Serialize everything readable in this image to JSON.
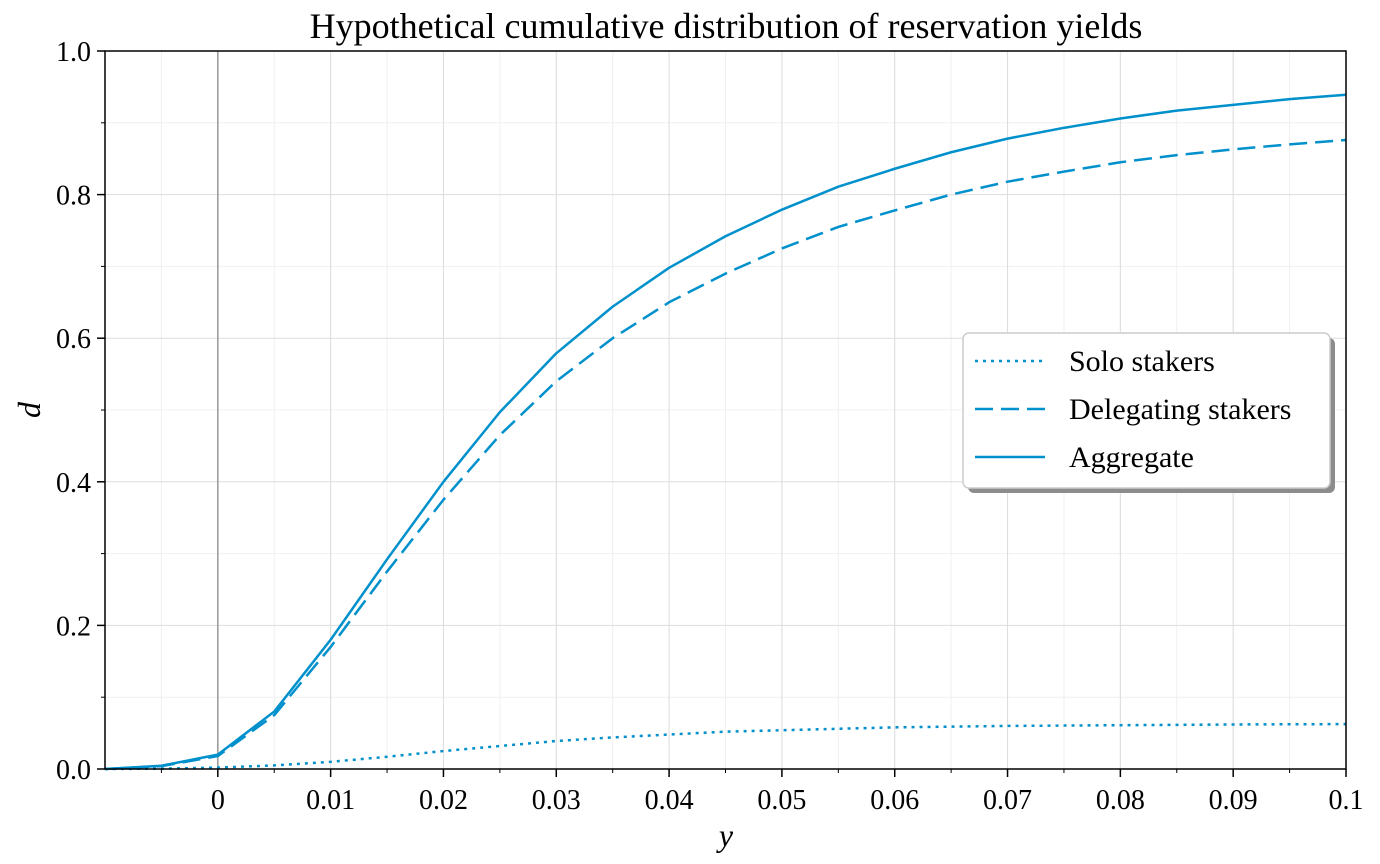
{
  "chart_data": {
    "type": "line",
    "title": "Hypothetical cumulative distribution of reservation yields",
    "xlabel": "y",
    "ylabel": "d",
    "xlim": [
      -0.01,
      0.1
    ],
    "ylim": [
      0.0,
      1.0
    ],
    "x_ticks": [
      0,
      0.01,
      0.02,
      0.03,
      0.04,
      0.05,
      0.06,
      0.07,
      0.08,
      0.09,
      0.1
    ],
    "x_tick_labels": [
      "0",
      "0.01",
      "0.02",
      "0.03",
      "0.04",
      "0.05",
      "0.06",
      "0.07",
      "0.08",
      "0.09",
      "0.1"
    ],
    "y_ticks": [
      0.0,
      0.2,
      0.4,
      0.6,
      0.8,
      1.0
    ],
    "y_tick_labels": [
      "0.0",
      "0.2",
      "0.4",
      "0.6",
      "0.8",
      "1.0"
    ],
    "grid": true,
    "minor_grid": true,
    "zero_line_x": 0,
    "legend_position": "right",
    "colors": {
      "line": "#0090cc"
    },
    "x": [
      -0.01,
      -0.005,
      0,
      0.005,
      0.01,
      0.015,
      0.02,
      0.025,
      0.03,
      0.035,
      0.04,
      0.045,
      0.05,
      0.055,
      0.06,
      0.065,
      0.07,
      0.075,
      0.08,
      0.085,
      0.09,
      0.095,
      0.1
    ],
    "series": [
      {
        "name": "Solo stakers",
        "style": "dotted",
        "values": [
          0.0,
          0.0005,
          0.002,
          0.005,
          0.01,
          0.017,
          0.025,
          0.032,
          0.039,
          0.044,
          0.048,
          0.052,
          0.054,
          0.056,
          0.058,
          0.059,
          0.06,
          0.0605,
          0.061,
          0.0615,
          0.062,
          0.0623,
          0.0625
        ]
      },
      {
        "name": "Delegating stakers",
        "style": "dashed",
        "values": [
          0.0,
          0.004,
          0.018,
          0.075,
          0.17,
          0.275,
          0.375,
          0.465,
          0.54,
          0.6,
          0.65,
          0.69,
          0.725,
          0.755,
          0.778,
          0.8,
          0.818,
          0.832,
          0.845,
          0.855,
          0.863,
          0.87,
          0.876
        ]
      },
      {
        "name": "Aggregate",
        "style": "solid",
        "values": [
          0.0,
          0.0045,
          0.02,
          0.08,
          0.18,
          0.292,
          0.4,
          0.497,
          0.579,
          0.644,
          0.698,
          0.742,
          0.779,
          0.811,
          0.836,
          0.859,
          0.878,
          0.893,
          0.906,
          0.917,
          0.925,
          0.933,
          0.939
        ]
      }
    ]
  }
}
